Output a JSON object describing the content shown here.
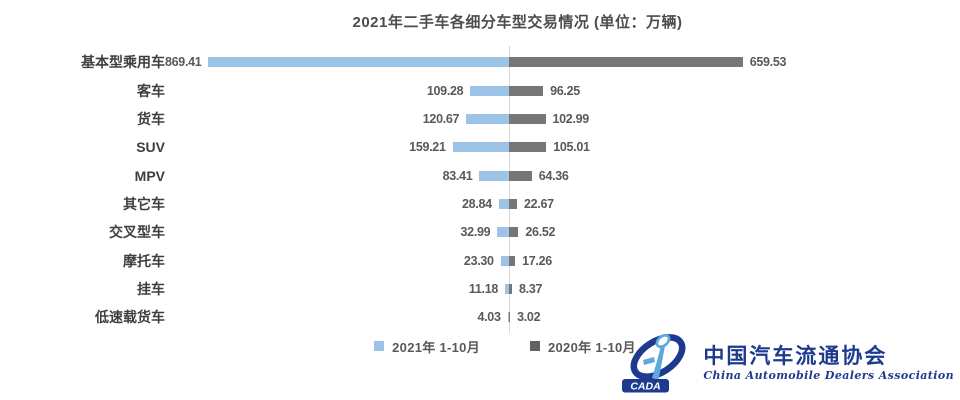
{
  "chart_data": {
    "type": "bar",
    "variant": "diverging-horizontal (tornado)",
    "title": "2021年二手车各细分车型交易情况 (单位：万辆)",
    "categories": [
      "基本型乘用车",
      "客车",
      "货车",
      "SUV",
      "MPV",
      "其它车",
      "交叉型车",
      "摩托车",
      "挂车",
      "低速载货车"
    ],
    "series": [
      {
        "name": "2021年 1-10月",
        "side": "left",
        "color": "#9DC3E6",
        "values": [
          869.41,
          109.28,
          120.67,
          159.21,
          83.41,
          28.84,
          32.99,
          23.3,
          11.18,
          4.03
        ]
      },
      {
        "name": "2020年 1-10月",
        "side": "right",
        "color": "#787575",
        "values": [
          659.53,
          96.25,
          102.99,
          105.01,
          64.36,
          22.67,
          26.52,
          17.26,
          8.37,
          3.02
        ]
      }
    ],
    "value_labels": "at outer end of each bar, two decimals",
    "legend_position": "bottom-center",
    "axes": "no visible axes; thin light-gray vertical center baseline",
    "background": "#FFFFFF"
  },
  "colors": {
    "bar_2021": "#9DC3E6",
    "bar_2020": "#787575",
    "legend_swatch_2020": "#636363",
    "title_text": "#4D4D4D",
    "category_text": "#3F3F3F",
    "value_text": "#595959",
    "center_line": "#D9D9D9",
    "logo_navy": "#1E3A8F",
    "logo_light_blue": "#5FA8DC"
  },
  "logo": {
    "badge_text": "CADA",
    "org_name_cn": "中国汽车流通协会",
    "org_name_en": "China Automobile Dealers Association"
  }
}
